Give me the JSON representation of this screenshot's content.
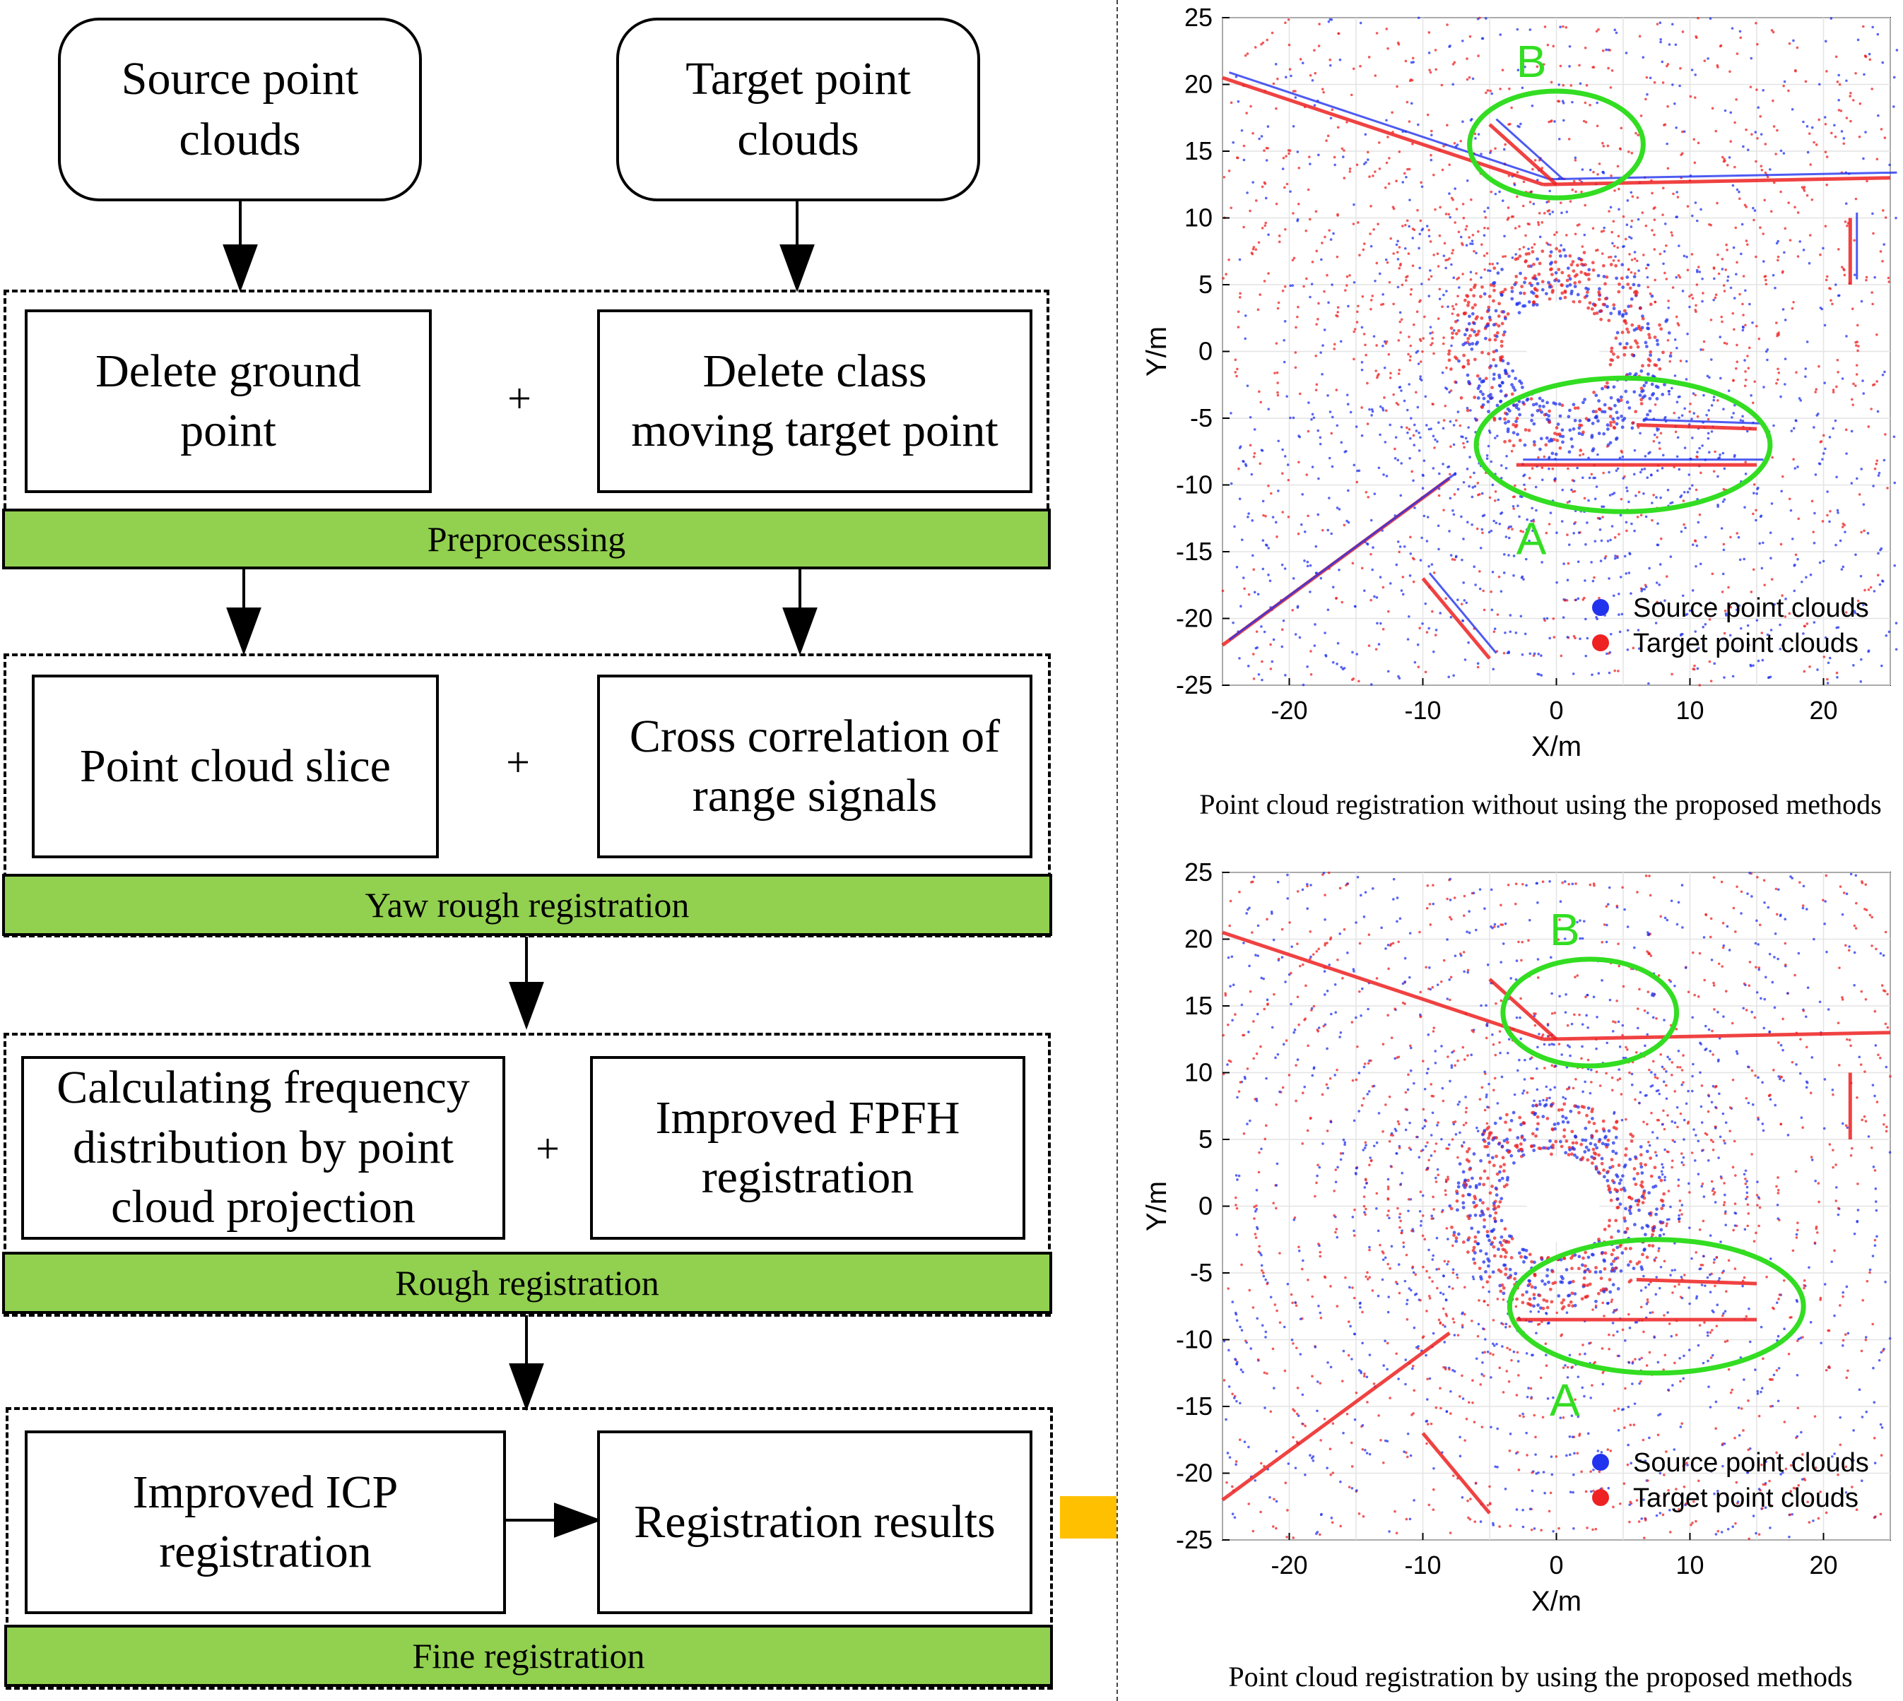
{
  "flow": {
    "source": "Source point\nclouds",
    "target": "Target point\nclouds",
    "plus": "+",
    "stages": [
      {
        "name": "Preprocessing",
        "left": "Delete ground\npoint",
        "right": "Delete class\nmoving target point"
      },
      {
        "name": "Yaw rough registration",
        "left": "Point cloud slice",
        "right": "Cross correlation of\nrange signals"
      },
      {
        "name": "Rough registration",
        "left": "Calculating frequency\ndistribution by point\ncloud projection",
        "right": "Improved FPFH\nregistration"
      },
      {
        "name": "Fine registration",
        "left": "Improved ICP\nregistration",
        "right": "Registration results"
      }
    ],
    "colors": {
      "stage_bar": "#92d050",
      "result_arrow": "#ffc000"
    }
  },
  "plots": [
    {
      "caption": "Point cloud registration without using the proposed methods",
      "xlabel": "X/m",
      "ylabel": "Y/m",
      "xlim": [
        -25,
        25
      ],
      "ylim": [
        -25,
        25
      ],
      "xticks": [
        -20,
        -10,
        0,
        10,
        20
      ],
      "yticks": [
        25,
        20,
        15,
        10,
        5,
        0,
        -5,
        -10,
        -15,
        -20,
        -25
      ],
      "legend": [
        "Source point clouds",
        "Target point clouds"
      ],
      "markers": [
        {
          "label": "B",
          "cx": 0,
          "cy": 15.5,
          "rx": 6.5,
          "ry": 4
        },
        {
          "label": "A",
          "cx": 5,
          "cy": -7,
          "rx": 11,
          "ry": 5
        }
      ]
    },
    {
      "caption": "Point cloud registration by using the proposed methods",
      "xlabel": "X/m",
      "ylabel": "Y/m",
      "xlim": [
        -25,
        25
      ],
      "ylim": [
        -25,
        25
      ],
      "xticks": [
        -20,
        -10,
        0,
        10,
        20
      ],
      "yticks": [
        25,
        20,
        15,
        10,
        5,
        0,
        -5,
        -10,
        -15,
        -20,
        -25
      ],
      "legend": [
        "Source point clouds",
        "Target point clouds"
      ],
      "markers": [
        {
          "label": "B",
          "cx": 2.5,
          "cy": 14.5,
          "rx": 6.5,
          "ry": 4
        },
        {
          "label": "A",
          "cx": 7.5,
          "cy": -7.5,
          "rx": 11,
          "ry": 5
        }
      ]
    }
  ],
  "colors": {
    "source": "#2233ee",
    "target": "#ee2222",
    "marker": "#33dd22"
  }
}
